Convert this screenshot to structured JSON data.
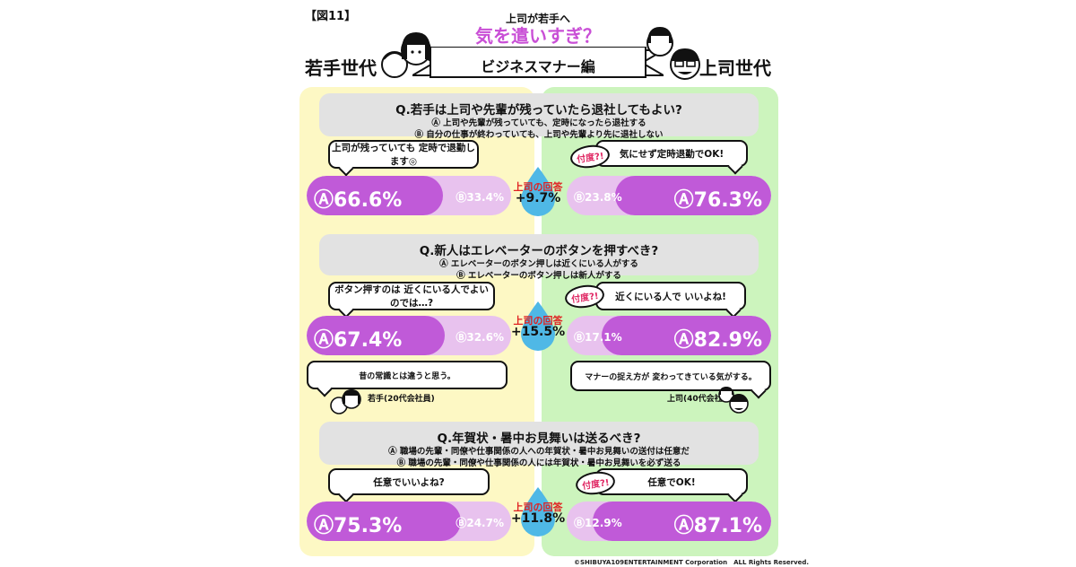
{
  "figure_label": "【図11】",
  "header": {
    "small_title": "上司が若手へ",
    "big_title": "気を遣いすぎ？",
    "banner": "ビジネスマナー編",
    "left_generation": "若手世代",
    "right_generation": "上司世代"
  },
  "colors": {
    "left_panel": "#fdf8c4",
    "right_panel": "#ccf4bd",
    "bar_main": "#c05ad8",
    "bar_minor": "#e8c2ee",
    "accent_title": "#c94fd6",
    "answer_red": "#e02020",
    "sontaku_pink": "#e02864",
    "drop_blue": "#4fb8e6"
  },
  "sontaku_label": "付度?!",
  "questions": [
    {
      "title": "Q.若手は上司や先輩が残っていたら退社してもよい?",
      "option_a": "Ⓐ 上司や先輩が残っていても、定時になったら退社する",
      "option_b": "Ⓑ 自分の仕事が終わっていても、上司や先輩より先に退社しない",
      "left_bubble": "上司が残っていても 定時で退勤します◎",
      "right_bubble": "気にせず定時退勤でOK!",
      "left_a": "Ⓐ66.6%",
      "left_b": "Ⓑ33.4%",
      "right_a": "Ⓐ76.3%",
      "right_b": "Ⓑ23.8%",
      "answer_label": "上司の回答",
      "answer_diff": "+9.7%"
    },
    {
      "title": "Q.新人はエレベーターのボタンを押すべき?",
      "option_a": "Ⓐ エレベーターのボタン押しは近くにいる人がする",
      "option_b": "Ⓑ エレベーターのボタン押しは新人がする",
      "left_bubble": "ボタン押すのは 近くにいる人でよいのでは…?",
      "right_bubble": "近くにいる人で いいよね!",
      "left_a": "Ⓐ67.4%",
      "left_b": "Ⓑ32.6%",
      "right_a": "Ⓐ82.9%",
      "right_b": "Ⓑ17.1%",
      "answer_label": "上司の回答",
      "answer_diff": "+15.5%",
      "left_comment": "昔の常識とは違うと思う。",
      "left_comment_by": "若手(20代会社員)",
      "right_comment": "マナーの捉え方が 変わってきている気がする。",
      "right_comment_by": "上司(40代会社員)"
    },
    {
      "title": "Q.年賀状・暑中お見舞いは送るべき?",
      "option_a": "Ⓐ 職場の先輩・同僚や仕事関係の人への年賀状・暑中お見舞いの送付は任意だ",
      "option_b": "Ⓑ 職場の先輩・同僚や仕事関係の人には年賀状・暑中お見舞いを必ず送る",
      "left_bubble": "任意でいいよね?",
      "right_bubble": "任意でOK!",
      "left_a": "Ⓐ75.3%",
      "left_b": "Ⓑ24.7%",
      "right_a": "Ⓐ87.1%",
      "right_b": "Ⓑ12.9%",
      "answer_label": "上司の回答",
      "answer_diff": "+11.8%"
    }
  ],
  "copyright": "©SHIBUYA109ENTERTAINMENT Corporation　ALL Rights Reserved.",
  "chart_data": {
    "type": "bar",
    "categories": [
      "Q.若手は上司や先輩が残っていたら退社してもよい?",
      "Q.新人はエレベーターのボタンを押すべき?",
      "Q.年賀状・暑中お見舞いは送るべき?"
    ],
    "series": [
      {
        "name": "若手世代",
        "values_a": [
          66.6,
          67.4,
          75.3
        ],
        "values_b": [
          33.4,
          32.6,
          24.7
        ]
      },
      {
        "name": "上司世代",
        "values_a": [
          76.3,
          82.9,
          87.1
        ],
        "values_b": [
          23.8,
          17.1,
          12.9
        ]
      }
    ],
    "differences": [
      "+9.7%",
      "+15.5%",
      "+11.8%"
    ],
    "ylim": [
      0,
      100
    ]
  }
}
